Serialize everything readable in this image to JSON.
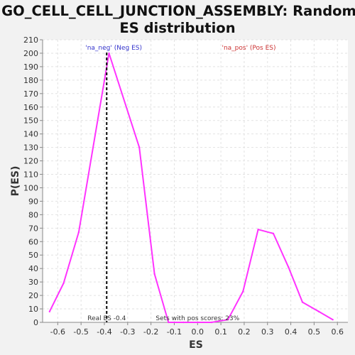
{
  "chart_data": {
    "type": "line",
    "title_lines": [
      "GO_CELL_CELL_JUNCTION_ASSEMBLY: Random",
      "ES distribution"
    ],
    "xlabel": "ES",
    "ylabel": "P(ES)",
    "xlim": [
      -0.665,
      0.645
    ],
    "ylim": [
      0,
      210
    ],
    "xticks": [
      -0.6,
      -0.5,
      -0.4,
      -0.3,
      -0.2,
      -0.1,
      0.0,
      0.1,
      0.2,
      0.3,
      0.4,
      0.5,
      0.6
    ],
    "xtick_labels": [
      "-0.6",
      "-0.5",
      "-0.4",
      "-0.3",
      "-0.2",
      "-0.1",
      "0.0",
      "0.1",
      "0.2",
      "0.3",
      "0.4",
      "0.5",
      "0.6"
    ],
    "yticks": [
      0,
      10,
      20,
      30,
      40,
      50,
      60,
      70,
      80,
      90,
      100,
      110,
      120,
      130,
      140,
      150,
      160,
      170,
      180,
      190,
      200,
      210
    ],
    "ytick_labels": [
      "0",
      "10",
      "20",
      "30",
      "40",
      "50",
      "60",
      "70",
      "80",
      "90",
      "100",
      "110",
      "120",
      "130",
      "140",
      "150",
      "160",
      "170",
      "180",
      "190",
      "200",
      "210"
    ],
    "grid": true,
    "series": [
      {
        "color": "#ff33ff",
        "x": [
          -0.635,
          -0.575,
          -0.51,
          -0.38,
          -0.25,
          -0.185,
          -0.125,
          -0.06,
          0.0,
          0.06,
          0.13,
          0.195,
          0.26,
          0.325,
          0.39,
          0.45,
          0.52,
          0.58
        ],
        "y": [
          8,
          29,
          67,
          200,
          130,
          36,
          0,
          0,
          0,
          0,
          2,
          23,
          69,
          66,
          41,
          15,
          8,
          2
        ]
      }
    ],
    "reference_line": {
      "x": -0.39,
      "style": "dashed",
      "color": "#000000"
    },
    "annotations": {
      "neg_label": "'na_neg' (Neg ES)",
      "neg_color": "#3333cc",
      "pos_label": "'na_pos' (Pos ES)",
      "pos_color": "#cc3333",
      "real_es": "Real ES -0.4",
      "pos_scores": "Sets with pos scores: 23%"
    },
    "plot_background": "#ffffff",
    "page_background": "#f2f2f2"
  }
}
